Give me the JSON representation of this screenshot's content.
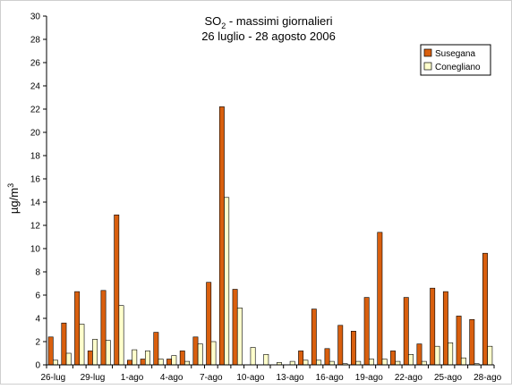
{
  "chart_data": {
    "type": "bar",
    "title_main": "SO",
    "title_sub": "2",
    "title_rest": " - massimi giornalieri",
    "subtitle": "26 luglio - 28 agosto 2006",
    "ylabel_main": "µg/m",
    "ylabel_sup": "3",
    "xlabel": "",
    "ylim": [
      0,
      30
    ],
    "yticks": [
      0,
      2,
      4,
      6,
      8,
      10,
      12,
      14,
      16,
      18,
      20,
      22,
      24,
      26,
      28,
      30
    ],
    "grid": false,
    "legend_position": "top-right",
    "categories": [
      "26-lug",
      "27-lug",
      "28-lug",
      "29-lug",
      "30-lug",
      "31-lug",
      "1-ago",
      "2-ago",
      "3-ago",
      "4-ago",
      "5-ago",
      "6-ago",
      "7-ago",
      "8-ago",
      "9-ago",
      "10-ago",
      "11-ago",
      "12-ago",
      "13-ago",
      "14-ago",
      "15-ago",
      "16-ago",
      "17-ago",
      "18-ago",
      "19-ago",
      "20-ago",
      "21-ago",
      "22-ago",
      "23-ago",
      "24-ago",
      "25-ago",
      "26-ago",
      "27-ago",
      "28-ago"
    ],
    "tick_labels": [
      "26-lug",
      "",
      "",
      "29-lug",
      "",
      "",
      "1-ago",
      "",
      "",
      "4-ago",
      "",
      "",
      "7-ago",
      "",
      "",
      "10-ago",
      "",
      "",
      "13-ago",
      "",
      "",
      "16-ago",
      "",
      "",
      "19-ago",
      "",
      "",
      "22-ago",
      "",
      "",
      "25-ago",
      "",
      "",
      "28-ago"
    ],
    "series": [
      {
        "name": "Susegana",
        "color": "#D95F0E",
        "values": [
          2.4,
          3.6,
          6.3,
          1.2,
          6.4,
          12.9,
          0.4,
          0.5,
          2.8,
          0.5,
          1.2,
          2.4,
          7.1,
          22.2,
          6.5,
          0.0,
          0.0,
          0.0,
          0.0,
          1.2,
          4.8,
          1.4,
          3.4,
          2.9,
          5.8,
          11.4,
          1.2,
          5.8,
          1.8,
          6.6,
          6.3,
          4.2,
          3.9,
          9.6
        ]
      },
      {
        "name": "Conegliano",
        "color": "#FFFFCC",
        "values": [
          0.4,
          1.0,
          3.5,
          2.2,
          2.1,
          5.1,
          1.3,
          1.2,
          0.5,
          0.8,
          0.3,
          1.8,
          2.0,
          14.4,
          4.9,
          1.5,
          0.9,
          0.2,
          0.3,
          0.4,
          0.4,
          0.3,
          0.1,
          0.3,
          0.5,
          0.5,
          0.3,
          0.9,
          0.3,
          1.6,
          1.9,
          0.6,
          0.1,
          1.6
        ]
      }
    ]
  }
}
